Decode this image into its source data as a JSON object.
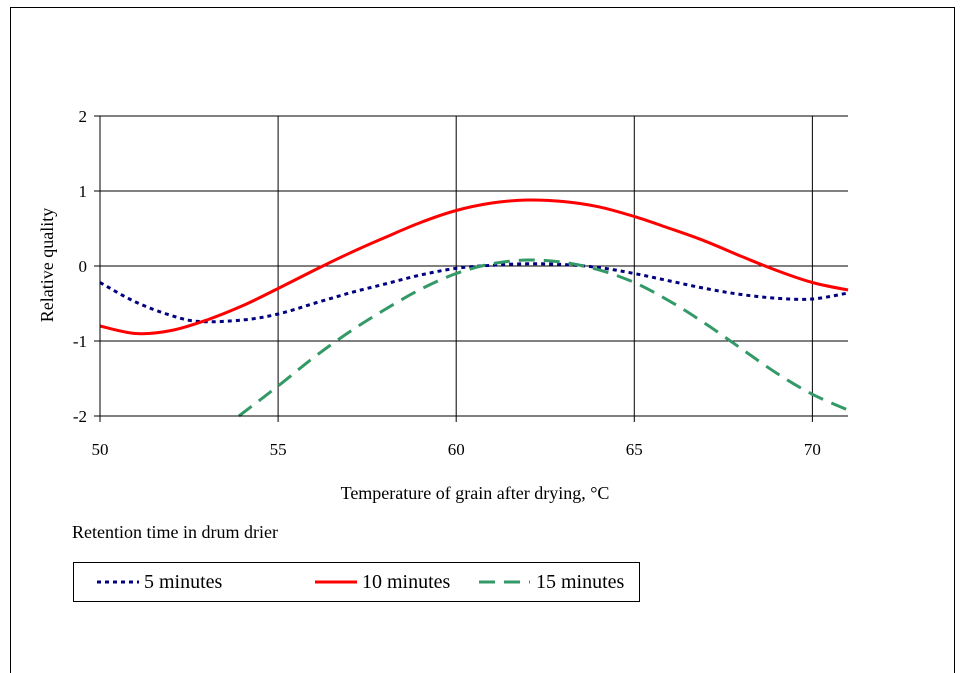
{
  "chart_data": {
    "type": "line",
    "title": "",
    "xlabel": "Temperature of grain after drying, °C",
    "ylabel": "Relative quality",
    "xlim": [
      50,
      71
    ],
    "ylim": [
      -2,
      2
    ],
    "xticks": [
      50,
      55,
      60,
      65,
      70
    ],
    "yticks": [
      2,
      1,
      0,
      -1,
      -2
    ],
    "ytick_labels": [
      "2",
      "1",
      "0",
      "-1",
      "-2"
    ],
    "grid": true,
    "legend_title": "Retention time in drum drier",
    "legend_position": "bottom",
    "series": [
      {
        "name": "5 minutes",
        "color": "#000080",
        "dash": "dotted",
        "x": [
          50,
          51,
          52,
          52.8,
          54,
          55,
          56,
          57,
          58,
          59,
          60,
          61,
          62,
          63,
          64,
          65,
          66,
          67,
          68,
          69,
          70,
          71
        ],
        "y": [
          -0.22,
          -0.48,
          -0.66,
          -0.74,
          -0.72,
          -0.64,
          -0.5,
          -0.36,
          -0.24,
          -0.12,
          -0.03,
          0.01,
          0.03,
          0.02,
          -0.02,
          -0.1,
          -0.2,
          -0.3,
          -0.38,
          -0.43,
          -0.44,
          -0.36
        ]
      },
      {
        "name": "10 minutes",
        "color": "#ff0000",
        "dash": "solid",
        "x": [
          50,
          51,
          52,
          53,
          54,
          55,
          56,
          57,
          58,
          59,
          60,
          61,
          62,
          63,
          64,
          65,
          66,
          67,
          68,
          69,
          70,
          71
        ],
        "y": [
          -0.8,
          -0.9,
          -0.86,
          -0.72,
          -0.53,
          -0.3,
          -0.06,
          0.17,
          0.38,
          0.58,
          0.74,
          0.84,
          0.88,
          0.86,
          0.79,
          0.66,
          0.5,
          0.33,
          0.13,
          -0.06,
          -0.22,
          -0.32
        ]
      },
      {
        "name": "15 minutes",
        "color": "#339966",
        "dash": "dashed",
        "x": [
          53.9,
          55,
          56,
          57,
          58,
          59,
          60,
          61,
          62,
          63,
          64,
          65,
          66,
          67,
          68,
          69,
          70,
          71
        ],
        "y": [
          -2,
          -1.6,
          -1.22,
          -0.88,
          -0.58,
          -0.31,
          -0.1,
          0.03,
          0.08,
          0.05,
          -0.05,
          -0.22,
          -0.47,
          -0.77,
          -1.1,
          -1.43,
          -1.71,
          -1.92
        ]
      }
    ]
  }
}
